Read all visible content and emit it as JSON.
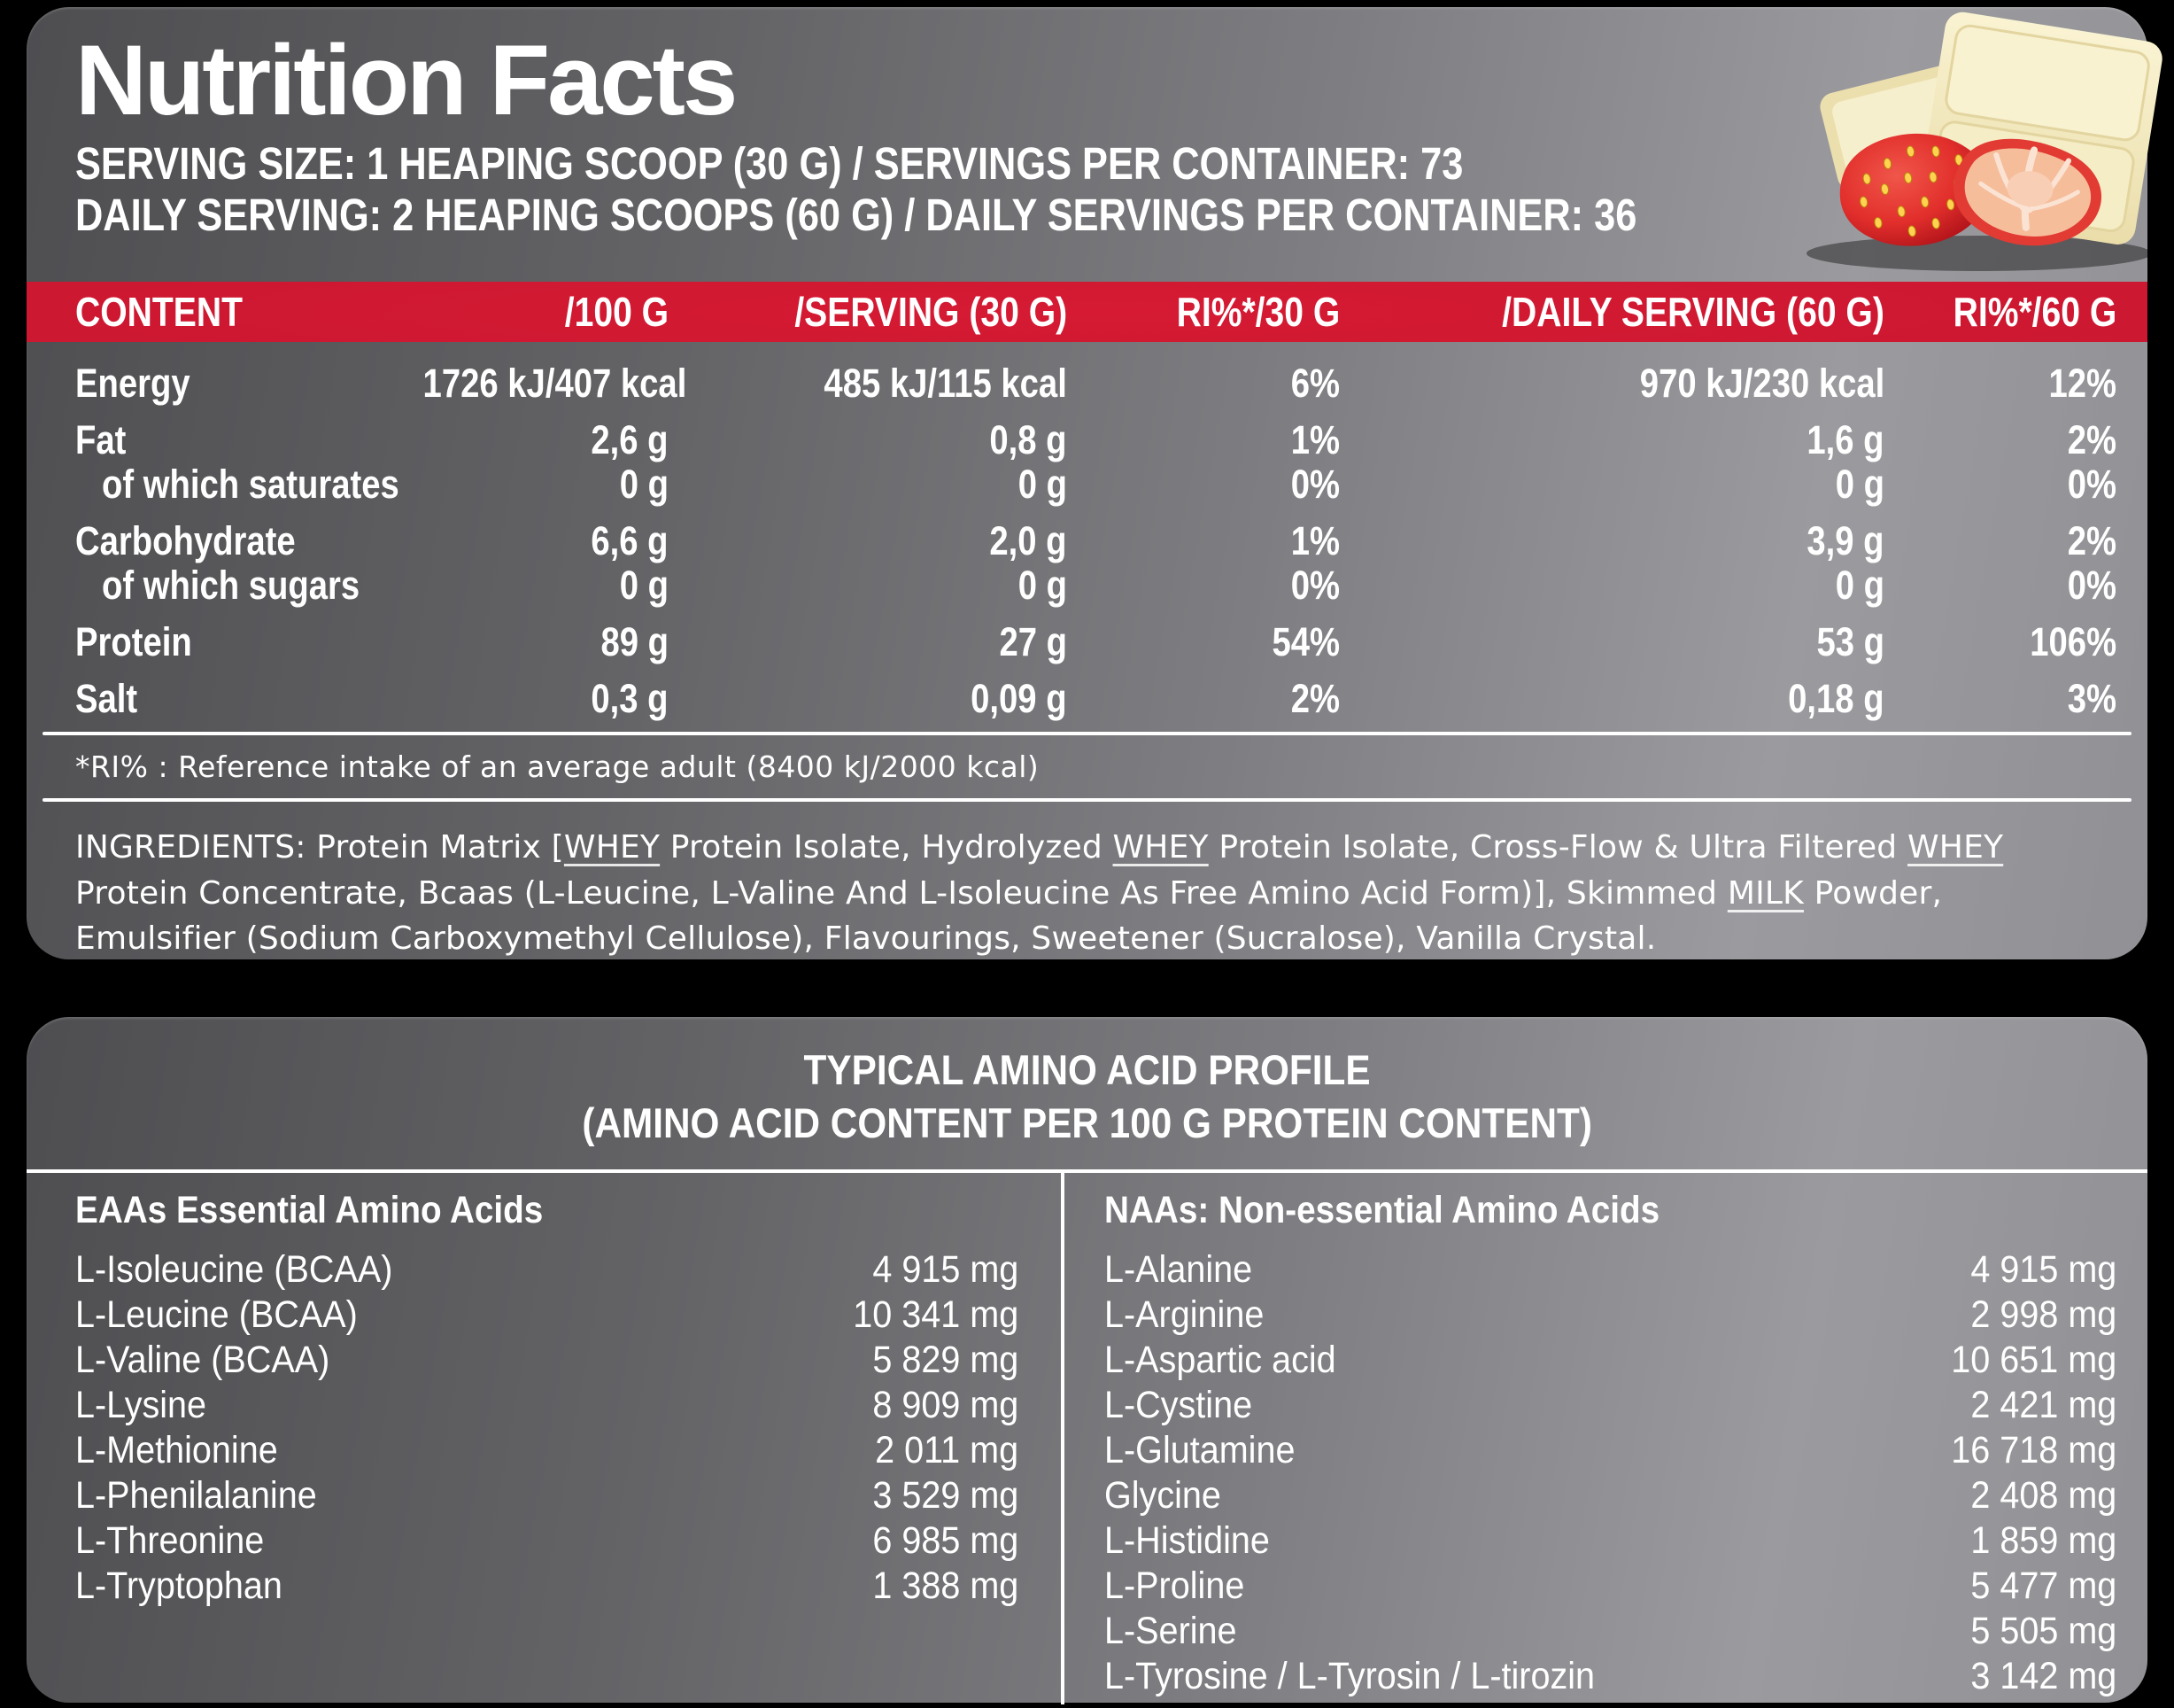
{
  "colors": {
    "background": "#000000",
    "accent_red": "#c91730",
    "panel_dark": "#4e4e51",
    "panel_light": "#9b9b9f",
    "text": "#ffffff"
  },
  "header": {
    "title": "Nutrition Facts",
    "serving_line1": "SERVING SIZE: 1 HEAPING SCOOP (30 G) / SERVINGS PER CONTAINER: 73",
    "serving_line2": "DAILY SERVING: 2 HEAPING SCOOPS (60 G) / DAILY SERVINGS PER CONTAINER: 36"
  },
  "image": {
    "name": "strawberries-and-white-chocolate"
  },
  "table": {
    "columns": {
      "content": "CONTENT",
      "per100": "/100 G",
      "per30": "/SERVING (30 G)",
      "ri30": "RI%*/30 G",
      "per60": "/DAILY SERVING (60 G)",
      "ri60": "RI%*/60 G"
    },
    "rows": [
      {
        "label": "Energy",
        "per100": "1726 kJ/407 kcal",
        "per30": "485 kJ/115 kcal",
        "ri30": "6%",
        "per60": "970 kJ/230 kcal",
        "ri60": "12%"
      },
      {
        "label": "Fat",
        "per100": "2,6 g",
        "per30": "0,8 g",
        "ri30": "1%",
        "per60": "1,6 g",
        "ri60": "2%"
      },
      {
        "label": "of which saturates",
        "per100": "0 g",
        "per30": "0 g",
        "ri30": "0%",
        "per60": "0 g",
        "ri60": "0%",
        "sub": true
      },
      {
        "label": "Carbohydrate",
        "per100": "6,6 g",
        "per30": "2,0 g",
        "ri30": "1%",
        "per60": "3,9 g",
        "ri60": "2%"
      },
      {
        "label": "of which sugars",
        "per100": "0 g",
        "per30": "0 g",
        "ri30": "0%",
        "per60": "0 g",
        "ri60": "0%",
        "sub": true
      },
      {
        "label": "Protein",
        "per100": "89 g",
        "per30": "27 g",
        "ri30": "54%",
        "per60": "53 g",
        "ri60": "106%"
      },
      {
        "label": "Salt",
        "per100": "0,3 g",
        "per30": "0,09 g",
        "ri30": "2%",
        "per60": "0,18 g",
        "ri60": "3%"
      }
    ],
    "footnote": "*RI% : Reference intake of an average adult (8400 kJ/2000 kcal)"
  },
  "ingredients": {
    "segments": [
      {
        "text": "INGREDIENTS: Protein Matrix ["
      },
      {
        "text": "WHEY",
        "underline": true
      },
      {
        "text": " Protein Isolate, Hydrolyzed "
      },
      {
        "text": "WHEY",
        "underline": true
      },
      {
        "text": " Protein Isolate, Cross-Flow & Ultra Filtered "
      },
      {
        "text": "WHEY",
        "underline": true
      },
      {
        "text": " Protein Concentrate, Bcaas (L-Leucine, L-Valine And L-Isoleucine As Free Amino Acid Form)], Skimmed "
      },
      {
        "text": "MILK",
        "underline": true
      },
      {
        "text": " Powder, Emulsifier (Sodium Carboxymethyl Cellulose), Flavourings, Sweetener (Sucralose), Vanilla Crystal."
      }
    ]
  },
  "amino_profile": {
    "title_line1": "TYPICAL AMINO ACID PROFILE",
    "title_line2": "(AMINO ACID CONTENT PER 100 G PROTEIN CONTENT)",
    "eaa": {
      "header": "EAAs Essential Amino Acids",
      "rows": [
        {
          "name": "L-Isoleucine (BCAA)",
          "value": "4 915 mg"
        },
        {
          "name": "L-Leucine (BCAA)",
          "value": "10 341 mg"
        },
        {
          "name": "L-Valine (BCAA)",
          "value": "5 829 mg"
        },
        {
          "name": "L-Lysine",
          "value": "8 909 mg"
        },
        {
          "name": "L-Methionine",
          "value": "2 011 mg"
        },
        {
          "name": "L-Phenilalanine",
          "value": "3 529 mg"
        },
        {
          "name": "L-Threonine",
          "value": "6 985 mg"
        },
        {
          "name": "L-Tryptophan",
          "value": "1 388 mg"
        }
      ]
    },
    "naa": {
      "header": "NAAs: Non-essential Amino Acids",
      "rows": [
        {
          "name": "L-Alanine",
          "value": "4 915 mg"
        },
        {
          "name": "L-Arginine",
          "value": "2 998 mg"
        },
        {
          "name": "L-Aspartic acid",
          "value": "10 651 mg"
        },
        {
          "name": "L-Cystine",
          "value": "2 421 mg"
        },
        {
          "name": "L-Glutamine",
          "value": "16 718 mg"
        },
        {
          "name": "Glycine",
          "value": "2 408 mg"
        },
        {
          "name": "L-Histidine",
          "value": "1 859 mg"
        },
        {
          "name": "L-Proline",
          "value": "5 477 mg"
        },
        {
          "name": "L-Serine",
          "value": "5 505 mg"
        },
        {
          "name": "L-Tyrosine / L-Tyrosin / L-tirozin",
          "value": "3 142 mg"
        }
      ]
    }
  }
}
